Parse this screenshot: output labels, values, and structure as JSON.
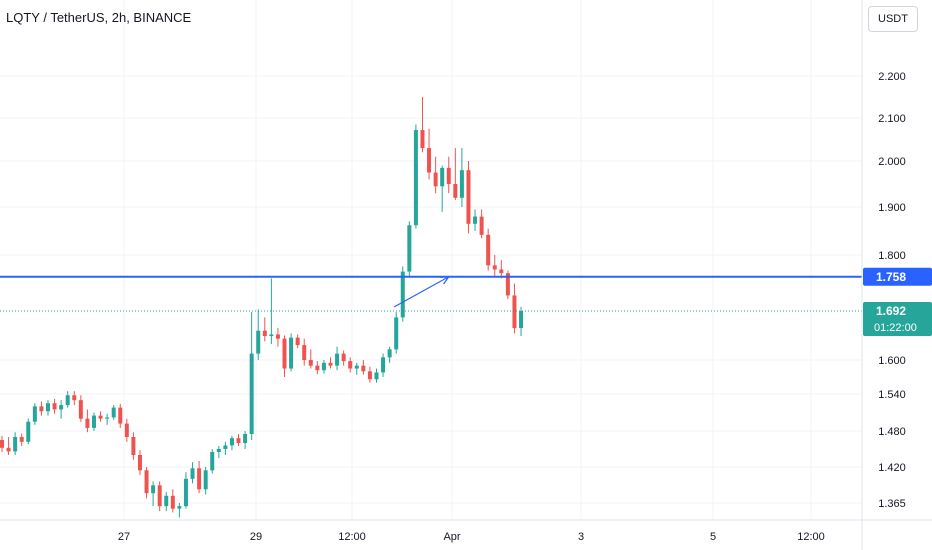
{
  "header": {
    "symbol": "LQTY / TetherUS, 2h, BINANCE",
    "currency": "USDT"
  },
  "colors": {
    "up": "#26a69a",
    "down": "#ef5350",
    "hline": "#2962ff",
    "grid": "#f0f3fa",
    "text": "#131722"
  },
  "chart_data": {
    "type": "candlestick",
    "ylim": [
      1.33,
      2.3
    ],
    "y_tick_labels": [
      "2.200",
      "2.100",
      "2.000",
      "1.900",
      "1.800",
      "1.600",
      "1.540",
      "1.480",
      "1.420",
      "1.365"
    ],
    "x_tick_labels": [
      "27",
      "29",
      "12:00",
      "Apr",
      "3",
      "5",
      "12:00"
    ],
    "horizontal_line": {
      "value": 1.758,
      "label": "1.758"
    },
    "last_price": {
      "value": 1.692,
      "label": "1.692",
      "countdown": "01:22:00"
    },
    "trend_arrow": {
      "from": {
        "candle": 60,
        "price": 1.7
      },
      "to": {
        "candle": 68,
        "price": 1.758
      }
    },
    "candles": [
      [
        1.465,
        1.472,
        1.445,
        1.452
      ],
      [
        1.452,
        1.47,
        1.44,
        1.446
      ],
      [
        1.446,
        1.478,
        1.44,
        1.47
      ],
      [
        1.47,
        1.476,
        1.455,
        1.462
      ],
      [
        1.462,
        1.5,
        1.458,
        1.495
      ],
      [
        1.495,
        1.525,
        1.49,
        1.52
      ],
      [
        1.52,
        1.528,
        1.505,
        1.512
      ],
      [
        1.512,
        1.53,
        1.505,
        1.525
      ],
      [
        1.525,
        1.532,
        1.508,
        1.515
      ],
      [
        1.515,
        1.53,
        1.5,
        1.522
      ],
      [
        1.522,
        1.545,
        1.518,
        1.538
      ],
      [
        1.538,
        1.545,
        1.522,
        1.53
      ],
      [
        1.53,
        1.538,
        1.495,
        1.5
      ],
      [
        1.5,
        1.515,
        1.478,
        1.485
      ],
      [
        1.485,
        1.51,
        1.48,
        1.505
      ],
      [
        1.505,
        1.512,
        1.495,
        1.5
      ],
      [
        1.5,
        1.508,
        1.49,
        1.502
      ],
      [
        1.502,
        1.522,
        1.498,
        1.518
      ],
      [
        1.518,
        1.524,
        1.485,
        1.492
      ],
      [
        1.492,
        1.5,
        1.462,
        1.47
      ],
      [
        1.47,
        1.478,
        1.432,
        1.44
      ],
      [
        1.44,
        1.448,
        1.408,
        1.415
      ],
      [
        1.415,
        1.42,
        1.372,
        1.38
      ],
      [
        1.38,
        1.398,
        1.36,
        1.392
      ],
      [
        1.392,
        1.398,
        1.352,
        1.36
      ],
      [
        1.36,
        1.382,
        1.352,
        1.376
      ],
      [
        1.376,
        1.386,
        1.35,
        1.356
      ],
      [
        1.356,
        1.365,
        1.342,
        1.36
      ],
      [
        1.36,
        1.412,
        1.356,
        1.402
      ],
      [
        1.402,
        1.428,
        1.395,
        1.418
      ],
      [
        1.418,
        1.43,
        1.38,
        1.386
      ],
      [
        1.386,
        1.42,
        1.378,
        1.415
      ],
      [
        1.415,
        1.45,
        1.41,
        1.445
      ],
      [
        1.445,
        1.455,
        1.435,
        1.45
      ],
      [
        1.45,
        1.462,
        1.44,
        1.456
      ],
      [
        1.456,
        1.472,
        1.448,
        1.468
      ],
      [
        1.468,
        1.475,
        1.455,
        1.46
      ],
      [
        1.46,
        1.48,
        1.45,
        1.475
      ],
      [
        1.475,
        1.69,
        1.465,
        1.612
      ],
      [
        1.612,
        1.695,
        1.6,
        1.655
      ],
      [
        1.655,
        1.68,
        1.635,
        1.645
      ],
      [
        1.645,
        1.755,
        1.63,
        1.648
      ],
      [
        1.648,
        1.66,
        1.625,
        1.64
      ],
      [
        1.64,
        1.646,
        1.57,
        1.585
      ],
      [
        1.585,
        1.65,
        1.58,
        1.642
      ],
      [
        1.642,
        1.648,
        1.622,
        1.628
      ],
      [
        1.628,
        1.64,
        1.59,
        1.6
      ],
      [
        1.6,
        1.62,
        1.585,
        1.59
      ],
      [
        1.59,
        1.598,
        1.575,
        1.582
      ],
      [
        1.582,
        1.6,
        1.576,
        1.595
      ],
      [
        1.595,
        1.605,
        1.585,
        1.59
      ],
      [
        1.59,
        1.625,
        1.582,
        1.612
      ],
      [
        1.612,
        1.618,
        1.59,
        1.598
      ],
      [
        1.598,
        1.605,
        1.578,
        1.585
      ],
      [
        1.585,
        1.595,
        1.574,
        1.59
      ],
      [
        1.59,
        1.6,
        1.574,
        1.58
      ],
      [
        1.58,
        1.588,
        1.56,
        1.566
      ],
      [
        1.566,
        1.585,
        1.56,
        1.578
      ],
      [
        1.578,
        1.612,
        1.57,
        1.605
      ],
      [
        1.605,
        1.625,
        1.595,
        1.62
      ],
      [
        1.62,
        1.69,
        1.612,
        1.68
      ],
      [
        1.68,
        1.778,
        1.672,
        1.768
      ],
      [
        1.768,
        1.87,
        1.76,
        1.862
      ],
      [
        1.862,
        2.085,
        1.855,
        2.072
      ],
      [
        2.072,
        2.15,
        2.02,
        2.03
      ],
      [
        2.03,
        2.075,
        1.96,
        1.975
      ],
      [
        1.975,
        2.01,
        1.93,
        1.945
      ],
      [
        1.945,
        1.99,
        1.89,
        1.985
      ],
      [
        1.985,
        2.01,
        1.93,
        1.95
      ],
      [
        1.95,
        2.03,
        1.915,
        1.92
      ],
      [
        1.92,
        2.03,
        1.9,
        1.98
      ],
      [
        1.98,
        2.0,
        1.845,
        1.865
      ],
      [
        1.865,
        1.895,
        1.85,
        1.88
      ],
      [
        1.88,
        1.895,
        1.835,
        1.842
      ],
      [
        1.842,
        1.855,
        1.77,
        1.78
      ],
      [
        1.78,
        1.8,
        1.758,
        1.772
      ],
      [
        1.772,
        1.79,
        1.755,
        1.765
      ],
      [
        1.765,
        1.77,
        1.715,
        1.722
      ],
      [
        1.722,
        1.745,
        1.65,
        1.66
      ],
      [
        1.66,
        1.7,
        1.645,
        1.692
      ]
    ]
  }
}
